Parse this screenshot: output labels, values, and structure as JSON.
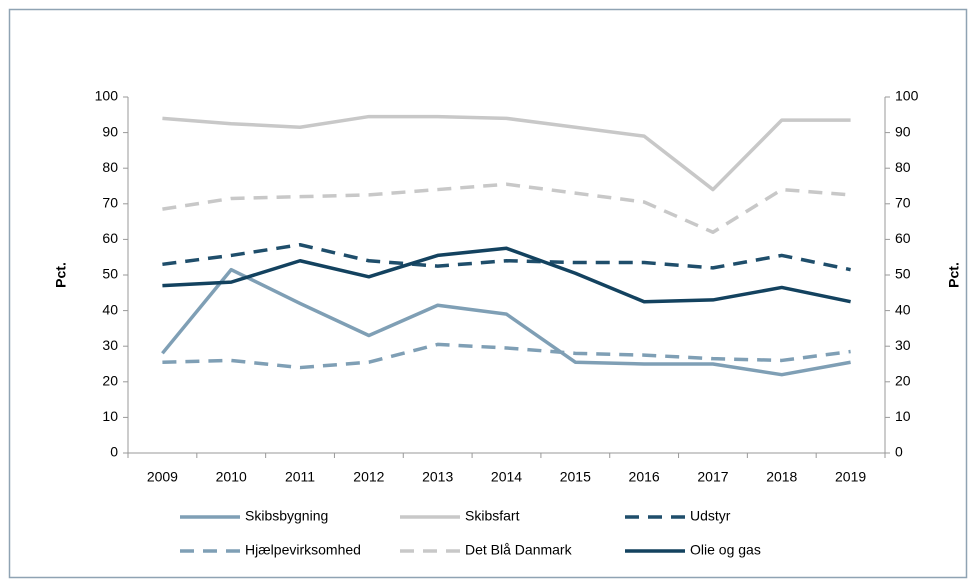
{
  "chart_data": {
    "type": "line",
    "categories": [
      "2009",
      "2010",
      "2011",
      "2012",
      "2013",
      "2014",
      "2015",
      "2016",
      "2017",
      "2018",
      "2019"
    ],
    "series": [
      {
        "name": "Skibsbygning",
        "color": "#7f9fb5",
        "style": "solid",
        "values": [
          28,
          51.5,
          42,
          33,
          41.5,
          39,
          25.5,
          25,
          25,
          22,
          25.5
        ]
      },
      {
        "name": "Skibsfart",
        "color": "#c8c8c8",
        "style": "solid",
        "values": [
          94,
          92.5,
          91.5,
          94.5,
          94.5,
          94,
          91.5,
          89,
          74,
          93.5,
          93.5
        ]
      },
      {
        "name": "Udstyr",
        "color": "#1f4e6b",
        "style": "dashed",
        "values": [
          53,
          55.5,
          58.5,
          54,
          52.5,
          54,
          53.5,
          53.5,
          52,
          55.5,
          51.5
        ]
      },
      {
        "name": "Hjælpevirksomhed",
        "color": "#7f9fb5",
        "style": "dashed",
        "values": [
          25.5,
          26,
          24,
          25.5,
          30.5,
          29.5,
          28,
          27.5,
          26.5,
          26,
          28.5
        ]
      },
      {
        "name": "Det Blå Danmark",
        "color": "#c8c8c8",
        "style": "dashed",
        "values": [
          68.5,
          71.5,
          72,
          72.5,
          74,
          75.5,
          73,
          70.5,
          62,
          74,
          72.5
        ]
      },
      {
        "name": "Olie og gas",
        "color": "#13425f",
        "style": "solid",
        "values": [
          47,
          48,
          54,
          49.5,
          55.5,
          57.5,
          50.5,
          42.5,
          43,
          46.5,
          42.5
        ]
      }
    ],
    "ylabel": "Pct.",
    "y2label": "Pct.",
    "ylim": [
      0,
      100
    ],
    "yticks": [
      0,
      10,
      20,
      30,
      40,
      50,
      60,
      70,
      80,
      90,
      100
    ],
    "y2lim": [
      0,
      100
    ],
    "y2ticks": [
      0,
      10,
      20,
      30,
      40,
      50,
      60,
      70,
      80,
      90,
      100
    ],
    "grid": false
  }
}
